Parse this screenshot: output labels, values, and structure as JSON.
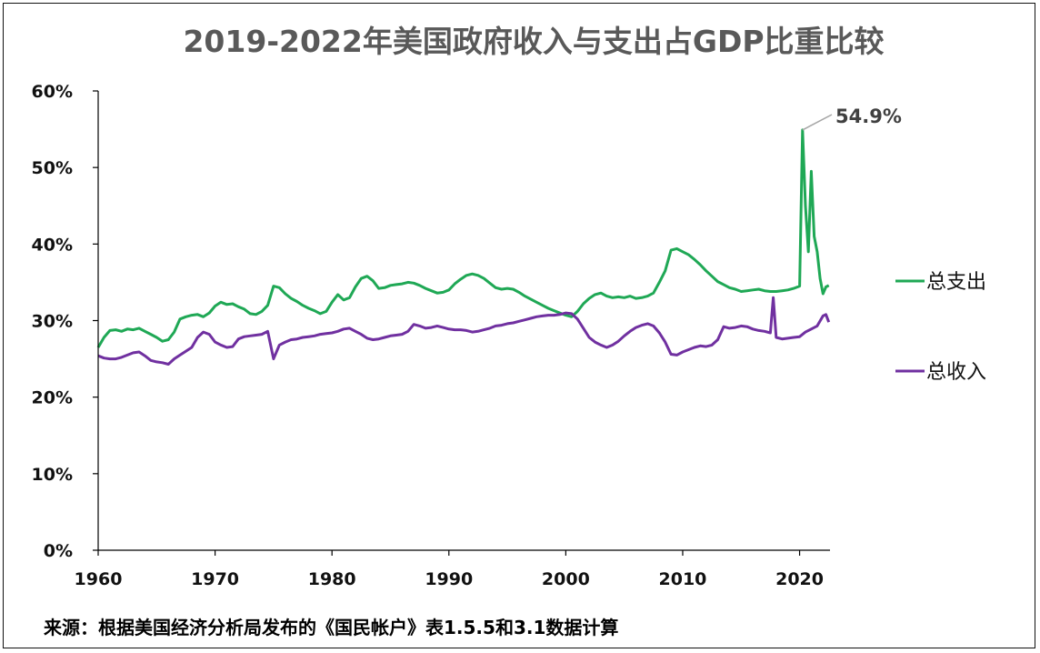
{
  "chart_data": {
    "type": "line",
    "title": "2019-2022年美国政府收入与支出占GDP比重比较",
    "xlabel": "",
    "ylabel": "",
    "xlim": [
      1960,
      2022.6
    ],
    "ylim": [
      0,
      60
    ],
    "x_ticks": [
      "1960",
      "1970",
      "1980",
      "1990",
      "2000",
      "2010",
      "2020"
    ],
    "y_ticks": [
      "0%",
      "10%",
      "20%",
      "30%",
      "40%",
      "50%",
      "60%"
    ],
    "legend": [
      "总支出",
      "总收入"
    ],
    "legend_position": "right",
    "annotation": {
      "text": "54.9%",
      "x": 2020.25,
      "y": 54.9
    },
    "source": "来源：根据美国经济分析局发布的《国民帐户》表1.5.5和3.1数据计算",
    "series": [
      {
        "name": "总支出",
        "color": "#1fa855",
        "points": [
          [
            1960.0,
            26.5
          ],
          [
            1960.5,
            27.8
          ],
          [
            1961.0,
            28.7
          ],
          [
            1961.5,
            28.8
          ],
          [
            1962.0,
            28.6
          ],
          [
            1962.5,
            28.9
          ],
          [
            1963.0,
            28.8
          ],
          [
            1963.5,
            29.0
          ],
          [
            1964.0,
            28.6
          ],
          [
            1964.5,
            28.2
          ],
          [
            1965.0,
            27.8
          ],
          [
            1965.5,
            27.3
          ],
          [
            1966.0,
            27.5
          ],
          [
            1966.5,
            28.5
          ],
          [
            1967.0,
            30.2
          ],
          [
            1967.5,
            30.5
          ],
          [
            1968.0,
            30.7
          ],
          [
            1968.5,
            30.8
          ],
          [
            1969.0,
            30.5
          ],
          [
            1969.5,
            31.0
          ],
          [
            1970.0,
            31.9
          ],
          [
            1970.5,
            32.4
          ],
          [
            1971.0,
            32.1
          ],
          [
            1971.5,
            32.2
          ],
          [
            1972.0,
            31.8
          ],
          [
            1972.5,
            31.5
          ],
          [
            1973.0,
            30.9
          ],
          [
            1973.5,
            30.8
          ],
          [
            1974.0,
            31.2
          ],
          [
            1974.5,
            32.0
          ],
          [
            1975.0,
            34.5
          ],
          [
            1975.5,
            34.3
          ],
          [
            1976.0,
            33.5
          ],
          [
            1976.5,
            32.9
          ],
          [
            1977.0,
            32.5
          ],
          [
            1977.5,
            32.0
          ],
          [
            1978.0,
            31.6
          ],
          [
            1978.5,
            31.3
          ],
          [
            1979.0,
            30.9
          ],
          [
            1979.5,
            31.2
          ],
          [
            1980.0,
            32.4
          ],
          [
            1980.5,
            33.4
          ],
          [
            1981.0,
            32.7
          ],
          [
            1981.5,
            33.0
          ],
          [
            1982.0,
            34.4
          ],
          [
            1982.5,
            35.5
          ],
          [
            1983.0,
            35.8
          ],
          [
            1983.5,
            35.2
          ],
          [
            1984.0,
            34.2
          ],
          [
            1984.5,
            34.3
          ],
          [
            1985.0,
            34.6
          ],
          [
            1985.5,
            34.7
          ],
          [
            1986.0,
            34.8
          ],
          [
            1986.5,
            35.0
          ],
          [
            1987.0,
            34.9
          ],
          [
            1987.5,
            34.6
          ],
          [
            1988.0,
            34.2
          ],
          [
            1988.5,
            33.9
          ],
          [
            1989.0,
            33.6
          ],
          [
            1989.5,
            33.7
          ],
          [
            1990.0,
            34.0
          ],
          [
            1990.5,
            34.8
          ],
          [
            1991.0,
            35.4
          ],
          [
            1991.5,
            35.9
          ],
          [
            1992.0,
            36.1
          ],
          [
            1992.5,
            35.9
          ],
          [
            1993.0,
            35.5
          ],
          [
            1993.5,
            34.9
          ],
          [
            1994.0,
            34.3
          ],
          [
            1994.5,
            34.1
          ],
          [
            1995.0,
            34.2
          ],
          [
            1995.5,
            34.1
          ],
          [
            1996.0,
            33.7
          ],
          [
            1996.5,
            33.2
          ],
          [
            1997.0,
            32.8
          ],
          [
            1997.5,
            32.4
          ],
          [
            1998.0,
            32.0
          ],
          [
            1998.5,
            31.6
          ],
          [
            1999.0,
            31.3
          ],
          [
            1999.5,
            31.0
          ],
          [
            2000.0,
            30.7
          ],
          [
            2000.5,
            30.5
          ],
          [
            2001.0,
            31.2
          ],
          [
            2001.5,
            32.2
          ],
          [
            2002.0,
            32.9
          ],
          [
            2002.5,
            33.4
          ],
          [
            2003.0,
            33.6
          ],
          [
            2003.5,
            33.2
          ],
          [
            2004.0,
            33.0
          ],
          [
            2004.5,
            33.1
          ],
          [
            2005.0,
            33.0
          ],
          [
            2005.5,
            33.2
          ],
          [
            2006.0,
            32.9
          ],
          [
            2006.5,
            33.0
          ],
          [
            2007.0,
            33.2
          ],
          [
            2007.5,
            33.6
          ],
          [
            2008.0,
            35.0
          ],
          [
            2008.5,
            36.5
          ],
          [
            2009.0,
            39.2
          ],
          [
            2009.5,
            39.4
          ],
          [
            2010.0,
            39.0
          ],
          [
            2010.5,
            38.6
          ],
          [
            2011.0,
            38.0
          ],
          [
            2011.5,
            37.3
          ],
          [
            2012.0,
            36.5
          ],
          [
            2012.5,
            35.8
          ],
          [
            2013.0,
            35.1
          ],
          [
            2013.5,
            34.7
          ],
          [
            2014.0,
            34.3
          ],
          [
            2014.5,
            34.1
          ],
          [
            2015.0,
            33.8
          ],
          [
            2015.5,
            33.9
          ],
          [
            2016.0,
            34.0
          ],
          [
            2016.5,
            34.1
          ],
          [
            2017.0,
            33.9
          ],
          [
            2017.5,
            33.8
          ],
          [
            2018.0,
            33.8
          ],
          [
            2018.5,
            33.9
          ],
          [
            2019.0,
            34.0
          ],
          [
            2019.5,
            34.2
          ],
          [
            2020.0,
            34.5
          ],
          [
            2020.25,
            54.9
          ],
          [
            2020.5,
            45.0
          ],
          [
            2020.75,
            39.0
          ],
          [
            2021.0,
            49.5
          ],
          [
            2021.25,
            41.0
          ],
          [
            2021.5,
            39.0
          ],
          [
            2021.75,
            35.5
          ],
          [
            2022.0,
            33.5
          ],
          [
            2022.25,
            34.4
          ],
          [
            2022.5,
            34.6
          ]
        ]
      },
      {
        "name": "总收入",
        "color": "#7030a0",
        "points": [
          [
            1960.0,
            25.4
          ],
          [
            1960.5,
            25.1
          ],
          [
            1961.0,
            25.0
          ],
          [
            1961.5,
            25.0
          ],
          [
            1962.0,
            25.2
          ],
          [
            1962.5,
            25.5
          ],
          [
            1963.0,
            25.8
          ],
          [
            1963.5,
            25.9
          ],
          [
            1964.0,
            25.4
          ],
          [
            1964.5,
            24.8
          ],
          [
            1965.0,
            24.6
          ],
          [
            1965.5,
            24.5
          ],
          [
            1966.0,
            24.3
          ],
          [
            1966.5,
            25.0
          ],
          [
            1967.0,
            25.5
          ],
          [
            1967.5,
            26.0
          ],
          [
            1968.0,
            26.5
          ],
          [
            1968.5,
            27.8
          ],
          [
            1969.0,
            28.5
          ],
          [
            1969.5,
            28.2
          ],
          [
            1970.0,
            27.2
          ],
          [
            1970.5,
            26.8
          ],
          [
            1971.0,
            26.5
          ],
          [
            1971.5,
            26.6
          ],
          [
            1972.0,
            27.6
          ],
          [
            1972.5,
            27.9
          ],
          [
            1973.0,
            28.0
          ],
          [
            1973.5,
            28.1
          ],
          [
            1974.0,
            28.2
          ],
          [
            1974.5,
            28.6
          ],
          [
            1975.0,
            25.0
          ],
          [
            1975.5,
            26.8
          ],
          [
            1976.0,
            27.2
          ],
          [
            1976.5,
            27.5
          ],
          [
            1977.0,
            27.6
          ],
          [
            1977.5,
            27.8
          ],
          [
            1978.0,
            27.9
          ],
          [
            1978.5,
            28.0
          ],
          [
            1979.0,
            28.2
          ],
          [
            1979.5,
            28.3
          ],
          [
            1980.0,
            28.4
          ],
          [
            1980.5,
            28.6
          ],
          [
            1981.0,
            28.9
          ],
          [
            1981.5,
            29.0
          ],
          [
            1982.0,
            28.6
          ],
          [
            1982.5,
            28.2
          ],
          [
            1983.0,
            27.7
          ],
          [
            1983.5,
            27.5
          ],
          [
            1984.0,
            27.6
          ],
          [
            1984.5,
            27.8
          ],
          [
            1985.0,
            28.0
          ],
          [
            1985.5,
            28.1
          ],
          [
            1986.0,
            28.2
          ],
          [
            1986.5,
            28.6
          ],
          [
            1987.0,
            29.5
          ],
          [
            1987.5,
            29.3
          ],
          [
            1988.0,
            29.0
          ],
          [
            1988.5,
            29.1
          ],
          [
            1989.0,
            29.3
          ],
          [
            1989.5,
            29.1
          ],
          [
            1990.0,
            28.9
          ],
          [
            1990.5,
            28.8
          ],
          [
            1991.0,
            28.8
          ],
          [
            1991.5,
            28.7
          ],
          [
            1992.0,
            28.5
          ],
          [
            1992.5,
            28.6
          ],
          [
            1993.0,
            28.8
          ],
          [
            1993.5,
            29.0
          ],
          [
            1994.0,
            29.3
          ],
          [
            1994.5,
            29.4
          ],
          [
            1995.0,
            29.6
          ],
          [
            1995.5,
            29.7
          ],
          [
            1996.0,
            29.9
          ],
          [
            1996.5,
            30.1
          ],
          [
            1997.0,
            30.3
          ],
          [
            1997.5,
            30.5
          ],
          [
            1998.0,
            30.6
          ],
          [
            1998.5,
            30.7
          ],
          [
            1999.0,
            30.7
          ],
          [
            1999.5,
            30.8
          ],
          [
            2000.0,
            31.0
          ],
          [
            2000.5,
            30.9
          ],
          [
            2001.0,
            30.2
          ],
          [
            2001.5,
            29.0
          ],
          [
            2002.0,
            27.8
          ],
          [
            2002.5,
            27.2
          ],
          [
            2003.0,
            26.8
          ],
          [
            2003.5,
            26.5
          ],
          [
            2004.0,
            26.8
          ],
          [
            2004.5,
            27.3
          ],
          [
            2005.0,
            28.0
          ],
          [
            2005.5,
            28.6
          ],
          [
            2006.0,
            29.1
          ],
          [
            2006.5,
            29.4
          ],
          [
            2007.0,
            29.6
          ],
          [
            2007.5,
            29.3
          ],
          [
            2008.0,
            28.4
          ],
          [
            2008.5,
            27.2
          ],
          [
            2009.0,
            25.6
          ],
          [
            2009.5,
            25.5
          ],
          [
            2010.0,
            25.9
          ],
          [
            2010.5,
            26.2
          ],
          [
            2011.0,
            26.5
          ],
          [
            2011.5,
            26.7
          ],
          [
            2012.0,
            26.6
          ],
          [
            2012.5,
            26.8
          ],
          [
            2013.0,
            27.5
          ],
          [
            2013.5,
            29.2
          ],
          [
            2014.0,
            29.0
          ],
          [
            2014.5,
            29.1
          ],
          [
            2015.0,
            29.3
          ],
          [
            2015.5,
            29.2
          ],
          [
            2016.0,
            28.9
          ],
          [
            2016.5,
            28.7
          ],
          [
            2017.0,
            28.6
          ],
          [
            2017.5,
            28.4
          ],
          [
            2017.75,
            33.0
          ],
          [
            2018.0,
            27.8
          ],
          [
            2018.5,
            27.6
          ],
          [
            2019.0,
            27.7
          ],
          [
            2019.5,
            27.8
          ],
          [
            2020.0,
            27.9
          ],
          [
            2020.5,
            28.5
          ],
          [
            2021.0,
            28.9
          ],
          [
            2021.5,
            29.3
          ],
          [
            2022.0,
            30.6
          ],
          [
            2022.25,
            30.8
          ],
          [
            2022.5,
            29.8
          ]
        ]
      }
    ]
  }
}
